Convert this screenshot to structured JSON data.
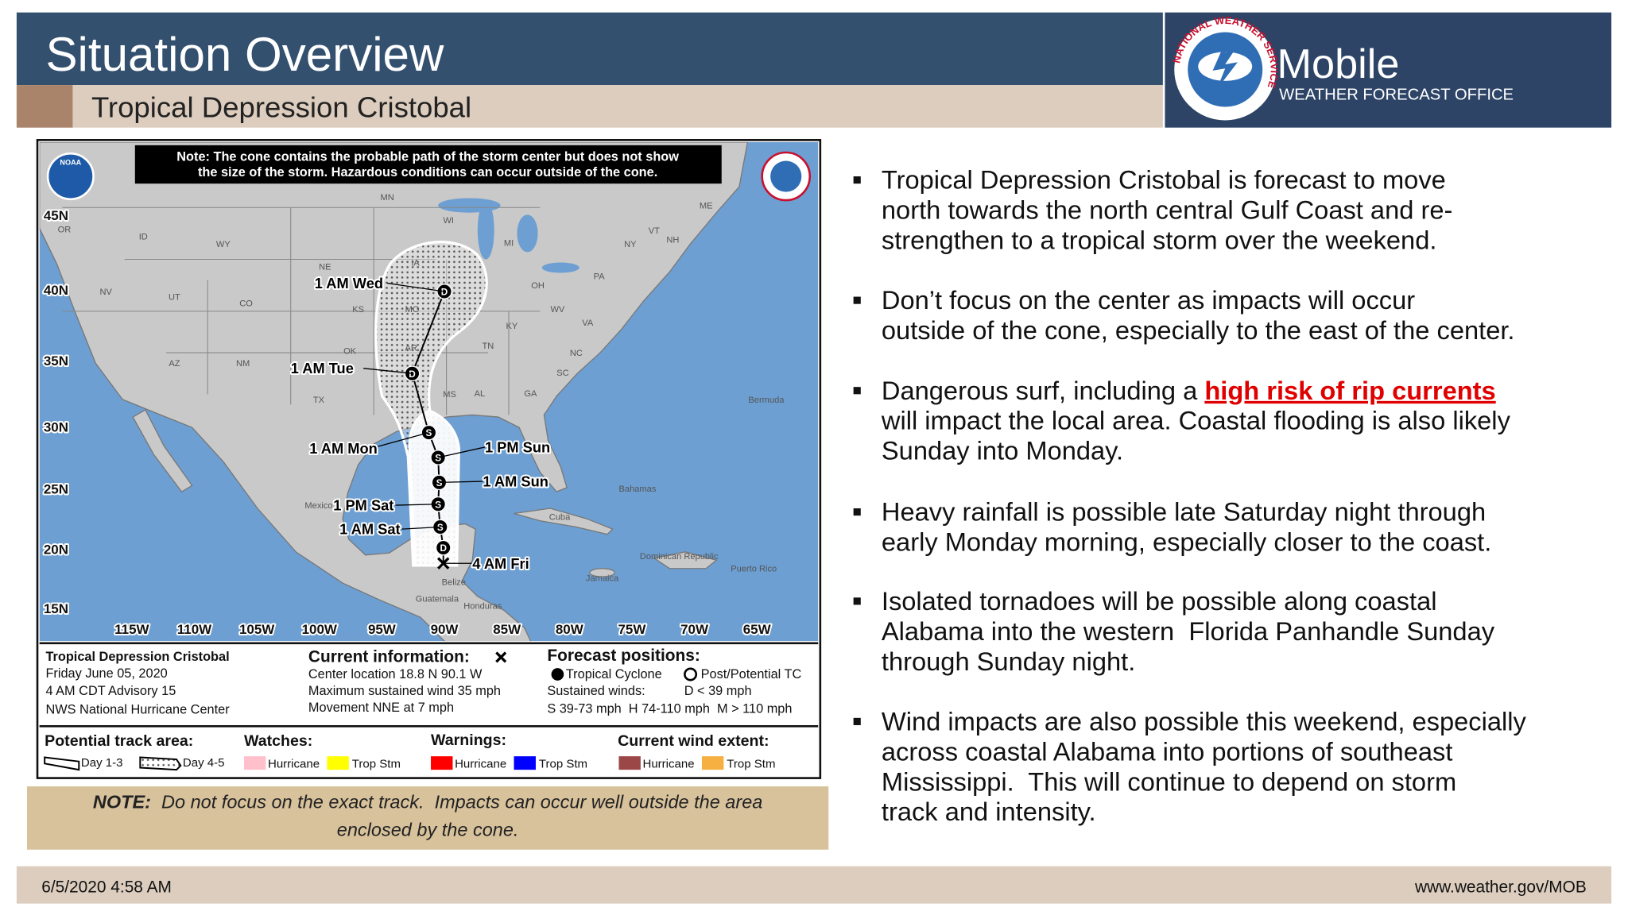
{
  "header": {
    "title": "Situation Overview",
    "subtitle": "Tropical Depression Cristobal",
    "office": "Mobile",
    "office_sub": "WEATHER FORECAST OFFICE",
    "logo_text": "NATIONAL WEATHER SERVICE"
  },
  "map": {
    "note": [
      "Note: The cone contains the probable path of the storm center but does not show",
      "the size of the storm. Hazardous conditions can occur outside of the cone."
    ],
    "noaa": "NOAA",
    "latitudes": [
      "45N",
      "40N",
      "35N",
      "30N",
      "25N",
      "20N",
      "15N"
    ],
    "longitudes": [
      "115W",
      "110W",
      "105W",
      "100W",
      "95W",
      "90W",
      "85W",
      "80W",
      "75W",
      "70W",
      "65W"
    ],
    "places": [
      "OR",
      "ID",
      "WY",
      "MN",
      "WI",
      "MI",
      "NY",
      "ME",
      "VT",
      "NH",
      "NE",
      "IA",
      "UT",
      "CO",
      "KS",
      "MO",
      "NV",
      "OH",
      "PA",
      "WV",
      "VA",
      "KY",
      "OK",
      "TN",
      "NC",
      "AR",
      "AZ",
      "NM",
      "SC",
      "MS",
      "AL",
      "GA",
      "TX",
      "Bermuda",
      "Mexico",
      "Cuba",
      "Bahamas",
      "Jamaica",
      "Dominican Republic",
      "Puerto Rico",
      "Belize",
      "Guatemala",
      "Honduras"
    ],
    "track_labels": [
      "1 AM Wed",
      "1 AM Tue",
      "1 AM Mon",
      "1 PM Sun",
      "1 AM Sun",
      "1 PM Sat",
      "1 AM Sat",
      "4 AM Fri"
    ],
    "track_points": [
      "D",
      "D",
      "S",
      "S",
      "S",
      "S",
      "S",
      "D"
    ],
    "info": {
      "storm": "Tropical Depression Cristobal",
      "date": "Friday June 05, 2020",
      "advisory": "4 AM CDT Advisory 15",
      "source": "NWS National Hurricane Center",
      "current_title": "Current information:",
      "center": "Center location 18.8 N 90.1 W",
      "wind": "Maximum sustained wind 35 mph",
      "movement": "Movement NNE at 7 mph",
      "forecast_title": "Forecast positions:",
      "tropical": "Tropical Cyclone",
      "post": "Post/Potential TC",
      "sustained": "Sustained winds:",
      "d_wind": "D < 39 mph",
      "scale": "S 39-73 mph  H 74-110 mph  M > 110 mph"
    },
    "legend": {
      "track_title": "Potential track area:",
      "day13": "Day 1-3",
      "day45": "Day 4-5",
      "watches": "Watches:",
      "watch_hurricane": "Hurricane",
      "watch_trop": "Trop Stm",
      "warnings": "Warnings:",
      "warn_hurricane": "Hurricane",
      "warn_trop": "Trop Stm",
      "wind_title": "Current wind extent:",
      "wind_hurricane": "Hurricane",
      "wind_trop": "Trop Stm"
    }
  },
  "note": {
    "label": "NOTE:",
    "lines": [
      "  Do not focus on the exact track.  Impacts can occur well outside the area",
      "enclosed by the cone."
    ]
  },
  "bullets": [
    [
      "Tropical Depression Cristobal is forecast to move",
      "north towards the north central Gulf Coast and re-",
      "strengthen to a tropical storm over the weekend."
    ],
    [
      "Don’t focus on the center as impacts will occur",
      "outside of the cone, especially to the east of the center."
    ],
    [
      {
        "text": "Dangerous surf, including a ",
        "highlight": "high risk of rip currents"
      },
      "will impact the local area. Coastal flooding is also likely",
      "Sunday into Monday."
    ],
    [
      "Heavy rainfall is possible late Saturday night through",
      "early Monday morning, especially closer to the coast."
    ],
    [
      "Isolated tornadoes will be possible along coastal",
      "Alabama into the western  Florida Panhandle Sunday",
      "through Sunday night."
    ],
    [
      "Wind impacts are also possible this weekend, especially",
      "across coastal Alabama into portions of southeast",
      "Mississippi.  This will continue to depend on storm",
      "track and intensity."
    ]
  ],
  "footer": {
    "date": "6/5/2020 4:58 AM",
    "url": "www.weather.gov/MOB"
  }
}
